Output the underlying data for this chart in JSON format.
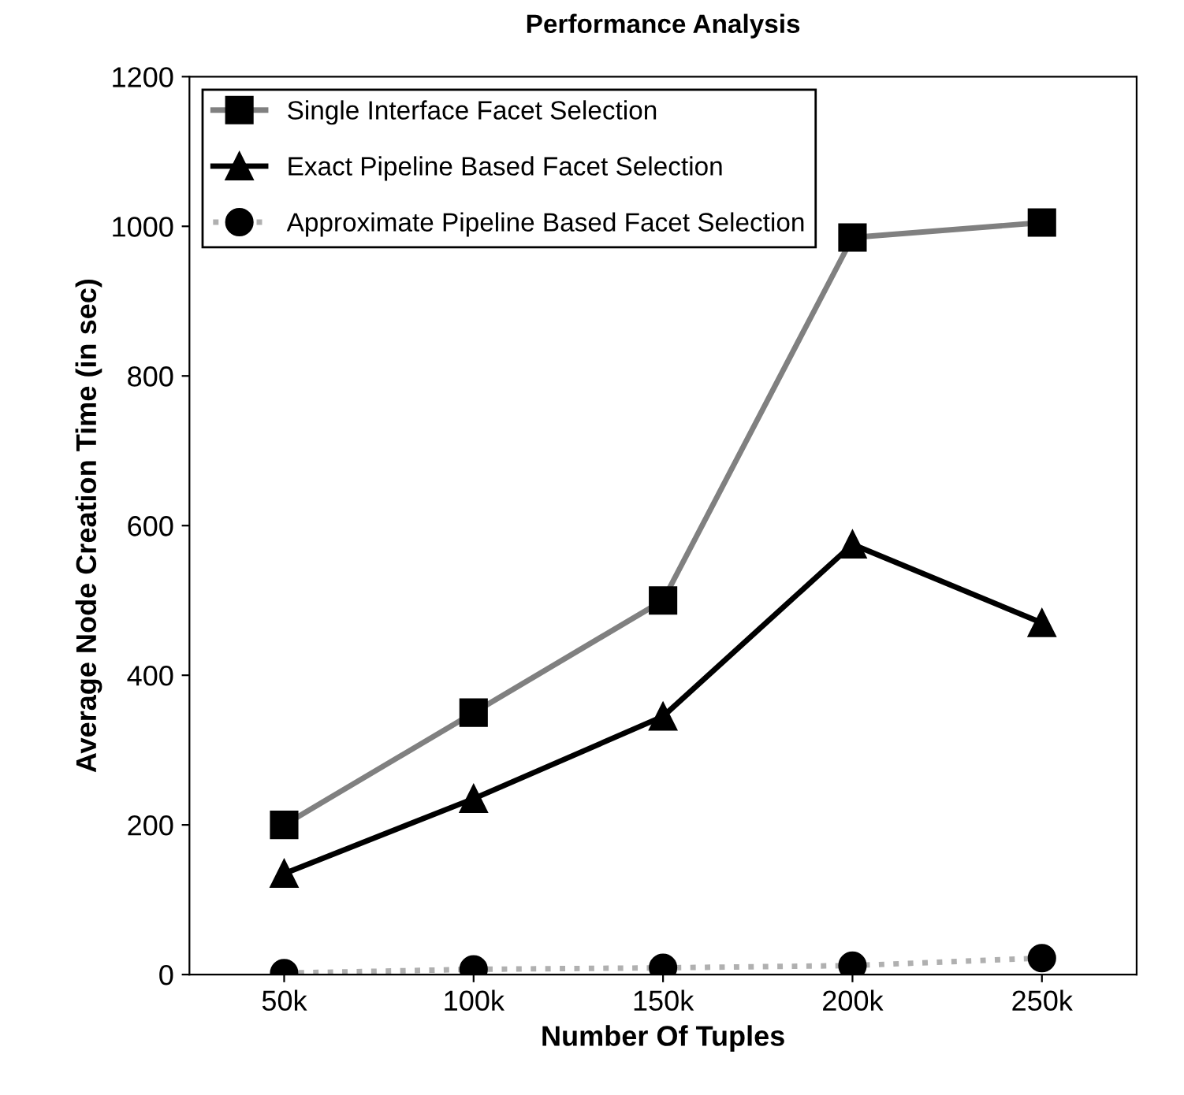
{
  "chart_data": {
    "type": "line",
    "title": "Performance Analysis",
    "xlabel": "Number Of Tuples",
    "ylabel": "Average Node Creation Time (in sec)",
    "categories": [
      "50k",
      "100k",
      "150k",
      "200k",
      "250k"
    ],
    "series": [
      {
        "name": "Single Interface Facet Selection",
        "color": "#808080",
        "marker": "square",
        "line_style": "solid",
        "values": [
          200,
          350,
          500,
          985,
          1005
        ]
      },
      {
        "name": "Exact Pipeline Based Facet Selection",
        "color": "#000000",
        "marker": "triangle",
        "line_style": "solid",
        "values": [
          135,
          235,
          345,
          575,
          470
        ]
      },
      {
        "name": "Approximate Pipeline Based Facet Selection",
        "color": "#b0b0b0",
        "marker": "circle",
        "line_style": "dotted",
        "values": [
          2,
          7,
          9,
          12,
          22
        ]
      }
    ],
    "ylim": [
      0,
      1200
    ],
    "yticks": [
      0,
      200,
      400,
      600,
      800,
      1000,
      1200
    ],
    "grid": false,
    "legend": "top left"
  }
}
